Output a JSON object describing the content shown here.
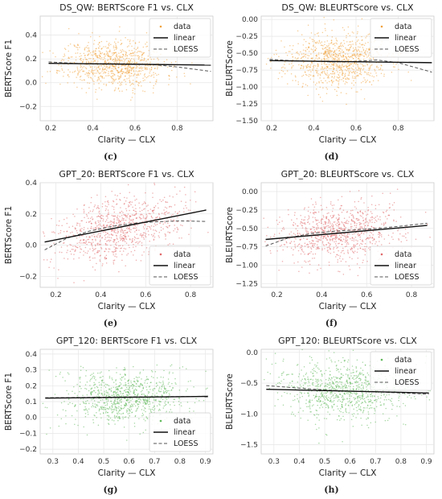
{
  "chart_data": [
    {
      "type": "scatter",
      "caption": "(c)",
      "title": "DS_QW: BERTScore F1 vs. CLX",
      "xlabel": "Clarity — CLX",
      "ylabel": "BERTScore F1",
      "xlim": [
        0.15,
        0.97
      ],
      "ylim": [
        -0.32,
        0.56
      ],
      "xticks": [
        0.2,
        0.4,
        0.6,
        0.8
      ],
      "yticks": [
        -0.2,
        0.0,
        0.2,
        0.4
      ],
      "xtick_labels": [
        "0.2",
        "0.4",
        "0.6",
        "0.8"
      ],
      "ytick_labels": [
        "−0.2",
        "0.0",
        "0.2",
        "0.4"
      ],
      "color": "#f0a23c",
      "scatter": {
        "x_mean": 0.5,
        "x_sd": 0.12,
        "y_mean": 0.16,
        "y_sd": 0.1,
        "n": 900,
        "seed": 11
      },
      "linear": {
        "x": [
          0.19,
          0.96
        ],
        "y": [
          0.163,
          0.148
        ]
      },
      "loess": {
        "x": [
          0.19,
          0.3,
          0.4,
          0.5,
          0.6,
          0.7,
          0.8,
          0.96
        ],
        "y": [
          0.175,
          0.163,
          0.158,
          0.158,
          0.157,
          0.15,
          0.132,
          0.095
        ]
      },
      "legend": [
        "data",
        "linear",
        "LOESS"
      ],
      "legend_position": "top-right",
      "grid": true
    },
    {
      "type": "scatter",
      "caption": "(d)",
      "title": "DS_QW: BLEURTScore vs. CLX",
      "xlabel": "Clarity — CLX",
      "ylabel": "BLEURTScore",
      "xlim": [
        0.15,
        0.97
      ],
      "ylim": [
        -1.5,
        0.05
      ],
      "xticks": [
        0.2,
        0.4,
        0.6,
        0.8
      ],
      "yticks": [
        -1.5,
        -1.25,
        -1.0,
        -0.75,
        -0.5,
        -0.25,
        0.0
      ],
      "xtick_labels": [
        "0.2",
        "0.4",
        "0.6",
        "0.8"
      ],
      "ytick_labels": [
        "−1.50",
        "−1.25",
        "−1.00",
        "−0.75",
        "−0.50",
        "−0.25",
        "0.00"
      ],
      "color": "#f0a23c",
      "scatter": {
        "x_mean": 0.5,
        "x_sd": 0.12,
        "y_mean": -0.62,
        "y_sd": 0.2,
        "n": 900,
        "seed": 23
      },
      "linear": {
        "x": [
          0.19,
          0.96
        ],
        "y": [
          -0.61,
          -0.64
        ]
      },
      "loess": {
        "x": [
          0.19,
          0.3,
          0.4,
          0.5,
          0.6,
          0.7,
          0.8,
          0.96
        ],
        "y": [
          -0.59,
          -0.61,
          -0.62,
          -0.63,
          -0.62,
          -0.6,
          -0.64,
          -0.78
        ]
      },
      "legend": [
        "data",
        "linear",
        "LOESS"
      ],
      "legend_position": "top-right",
      "grid": true
    },
    {
      "type": "scatter",
      "caption": "(e)",
      "title": "GPT_20: BERTScore F1 vs. CLX",
      "xlabel": "Clarity — CLX",
      "ylabel": "BERTScore F1",
      "xlim": [
        0.13,
        0.9
      ],
      "ylim": [
        -0.27,
        0.4
      ],
      "xticks": [
        0.2,
        0.4,
        0.6,
        0.8
      ],
      "yticks": [
        -0.2,
        0.0,
        0.2,
        0.4
      ],
      "xtick_labels": [
        "0.2",
        "0.4",
        "0.6",
        "0.8"
      ],
      "ytick_labels": [
        "−0.2",
        "0.0",
        "0.2",
        "0.4"
      ],
      "color": "#e0686a",
      "scatter": {
        "x_mean": 0.48,
        "x_sd": 0.14,
        "y_mean": 0.11,
        "y_sd": 0.1,
        "n": 900,
        "seed": 37
      },
      "linear": {
        "x": [
          0.15,
          0.87
        ],
        "y": [
          0.02,
          0.225
        ]
      },
      "loess": {
        "x": [
          0.15,
          0.25,
          0.35,
          0.45,
          0.55,
          0.65,
          0.75,
          0.87
        ],
        "y": [
          -0.03,
          0.045,
          0.09,
          0.12,
          0.14,
          0.15,
          0.155,
          0.152
        ]
      },
      "legend": [
        "data",
        "linear",
        "LOESS"
      ],
      "legend_position": "bottom-right",
      "grid": true
    },
    {
      "type": "scatter",
      "caption": "(f)",
      "title": "GPT_20: BLEURTScore vs. CLX",
      "xlabel": "Clarity — CLX",
      "ylabel": "BLEURTScore",
      "xlim": [
        0.13,
        0.9
      ],
      "ylim": [
        -1.3,
        0.12
      ],
      "xticks": [
        0.2,
        0.4,
        0.6,
        0.8
      ],
      "yticks": [
        -1.25,
        -1.0,
        -0.75,
        -0.5,
        -0.25,
        0.0
      ],
      "xtick_labels": [
        "0.2",
        "0.4",
        "0.6",
        "0.8"
      ],
      "ytick_labels": [
        "−1.25",
        "−1.00",
        "−0.75",
        "−0.50",
        "−0.25",
        "0.00"
      ],
      "color": "#e0686a",
      "scatter": {
        "x_mean": 0.48,
        "x_sd": 0.14,
        "y_mean": -0.56,
        "y_sd": 0.2,
        "n": 900,
        "seed": 53
      },
      "linear": {
        "x": [
          0.15,
          0.87
        ],
        "y": [
          -0.65,
          -0.46
        ]
      },
      "loess": {
        "x": [
          0.15,
          0.25,
          0.35,
          0.45,
          0.55,
          0.65,
          0.75,
          0.87
        ],
        "y": [
          -0.74,
          -0.63,
          -0.57,
          -0.54,
          -0.52,
          -0.5,
          -0.47,
          -0.43
        ]
      },
      "legend": [
        "data",
        "linear",
        "LOESS"
      ],
      "legend_position": "bottom-right",
      "grid": true
    },
    {
      "type": "scatter",
      "caption": "(g)",
      "title": "GPT_120: BERTScore F1 vs. CLX",
      "xlabel": "Clarity — CLX",
      "ylabel": "BERTScore F1",
      "xlim": [
        0.25,
        0.93
      ],
      "ylim": [
        -0.23,
        0.43
      ],
      "xticks": [
        0.3,
        0.4,
        0.5,
        0.6,
        0.7,
        0.8,
        0.9
      ],
      "yticks": [
        -0.2,
        -0.1,
        0.0,
        0.1,
        0.2,
        0.3,
        0.4
      ],
      "xtick_labels": [
        "0.3",
        "0.4",
        "0.5",
        "0.6",
        "0.7",
        "0.8",
        "0.9"
      ],
      "ytick_labels": [
        "−0.2",
        "−0.1",
        "0.0",
        "0.1",
        "0.2",
        "0.3",
        "0.4"
      ],
      "color": "#5fb85a",
      "scatter": {
        "x_mean": 0.58,
        "x_sd": 0.12,
        "y_mean": 0.125,
        "y_sd": 0.085,
        "n": 900,
        "seed": 71
      },
      "linear": {
        "x": [
          0.27,
          0.91
        ],
        "y": [
          0.122,
          0.133
        ]
      },
      "loess": {
        "x": [
          0.27,
          0.4,
          0.5,
          0.6,
          0.7,
          0.8,
          0.91
        ],
        "y": [
          0.125,
          0.126,
          0.128,
          0.13,
          0.131,
          0.132,
          0.134
        ]
      },
      "legend": [
        "data",
        "linear",
        "LOESS"
      ],
      "legend_position": "bottom-right",
      "grid": true
    },
    {
      "type": "scatter",
      "caption": "(h)",
      "title": "GPT_120: BLEURTScore vs. CLX",
      "xlabel": "Clarity — CLX",
      "ylabel": "BLEURTScore",
      "xlim": [
        0.25,
        0.93
      ],
      "ylim": [
        -1.65,
        0.05
      ],
      "xticks": [
        0.3,
        0.4,
        0.5,
        0.6,
        0.7,
        0.8,
        0.9
      ],
      "yticks": [
        -1.5,
        -1.0,
        -0.5,
        0.0
      ],
      "xtick_labels": [
        "0.3",
        "0.4",
        "0.5",
        "0.6",
        "0.7",
        "0.8",
        "0.9"
      ],
      "ytick_labels": [
        "−1.5",
        "−1.0",
        "−0.5",
        "0.0"
      ],
      "color": "#5fb85a",
      "scatter": {
        "x_mean": 0.58,
        "x_sd": 0.12,
        "y_mean": -0.62,
        "y_sd": 0.24,
        "n": 900,
        "seed": 89
      },
      "linear": {
        "x": [
          0.27,
          0.91
        ],
        "y": [
          -0.6,
          -0.66
        ]
      },
      "loess": {
        "x": [
          0.27,
          0.4,
          0.5,
          0.6,
          0.7,
          0.8,
          0.91
        ],
        "y": [
          -0.54,
          -0.58,
          -0.61,
          -0.63,
          -0.64,
          -0.66,
          -0.68
        ]
      },
      "legend": [
        "data",
        "linear",
        "LOESS"
      ],
      "legend_position": "top-right",
      "grid": true
    }
  ]
}
